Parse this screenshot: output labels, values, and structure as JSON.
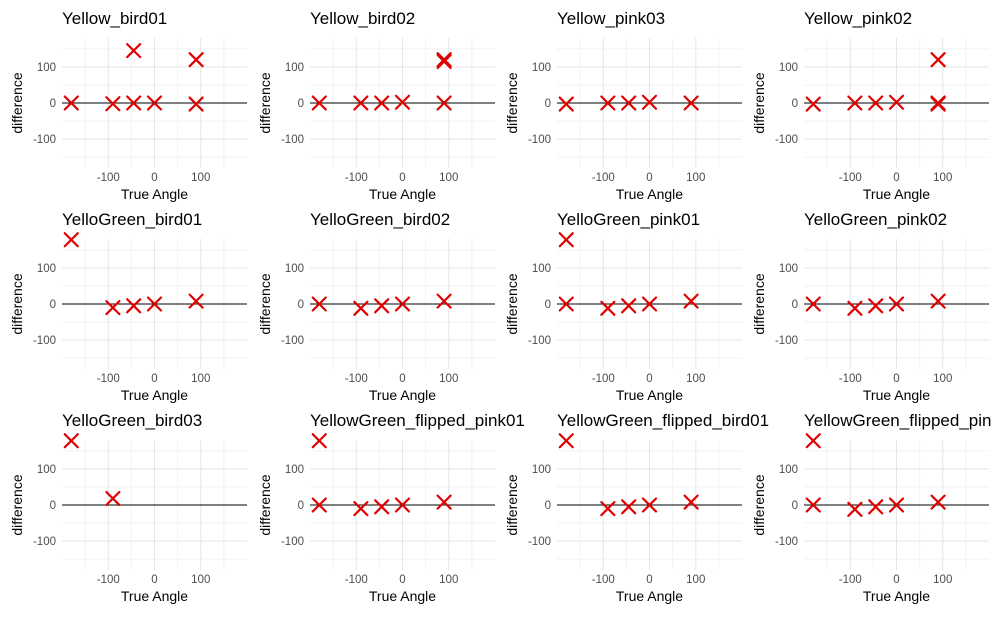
{
  "chart_data": [
    {
      "type": "scatter",
      "title": "Yellow_bird01",
      "xlabel": "True Angle",
      "ylabel": "difference",
      "x": [
        -180,
        -90,
        -45,
        0,
        90,
        -45,
        90
      ],
      "y": [
        0,
        -2,
        0,
        0,
        -3,
        145,
        120
      ],
      "xlim": [
        -200,
        200
      ],
      "ylim": [
        -180,
        180
      ],
      "xticks": [
        "-100",
        "0",
        "100"
      ],
      "yticks": [
        "-100",
        "0",
        "100"
      ]
    },
    {
      "type": "scatter",
      "title": "Yellow_bird02",
      "xlabel": "True Angle",
      "ylabel": "difference",
      "x": [
        -180,
        -90,
        -45,
        0,
        90,
        90,
        90
      ],
      "y": [
        0,
        0,
        0,
        2,
        0,
        120,
        115
      ],
      "xlim": [
        -200,
        200
      ],
      "ylim": [
        -180,
        180
      ],
      "xticks": [
        "-100",
        "0",
        "100"
      ],
      "yticks": [
        "-100",
        "0",
        "100"
      ]
    },
    {
      "type": "scatter",
      "title": "Yellow_pink03",
      "xlabel": "True Angle",
      "ylabel": "difference",
      "x": [
        -180,
        -90,
        -45,
        0,
        90
      ],
      "y": [
        -3,
        0,
        0,
        2,
        0
      ],
      "xlim": [
        -200,
        200
      ],
      "ylim": [
        -180,
        180
      ],
      "xticks": [
        "-100",
        "0",
        "100"
      ],
      "yticks": [
        "-100",
        "0",
        "100"
      ]
    },
    {
      "type": "scatter",
      "title": "Yellow_pink02",
      "xlabel": "True Angle",
      "ylabel": "difference",
      "x": [
        -180,
        -90,
        -45,
        0,
        90,
        90,
        90
      ],
      "y": [
        -3,
        0,
        0,
        2,
        -3,
        0,
        120
      ],
      "xlim": [
        -200,
        200
      ],
      "ylim": [
        -180,
        180
      ],
      "xticks": [
        "-100",
        "0",
        "100"
      ],
      "yticks": [
        "-100",
        "0",
        "100"
      ]
    },
    {
      "type": "scatter",
      "title": "YelloGreen_bird01",
      "xlabel": "True Angle",
      "ylabel": "difference",
      "x": [
        -180,
        -90,
        -45,
        0,
        90
      ],
      "y": [
        178,
        -10,
        -5,
        0,
        8
      ],
      "xlim": [
        -200,
        200
      ],
      "ylim": [
        -180,
        180
      ],
      "xticks": [
        "-100",
        "0",
        "100"
      ],
      "yticks": [
        "-100",
        "0",
        "100"
      ]
    },
    {
      "type": "scatter",
      "title": "YelloGreen_bird02",
      "xlabel": "True Angle",
      "ylabel": "difference",
      "x": [
        -180,
        -90,
        -45,
        0,
        90
      ],
      "y": [
        0,
        -12,
        -5,
        0,
        8
      ],
      "xlim": [
        -200,
        200
      ],
      "ylim": [
        -180,
        180
      ],
      "xticks": [
        "-100",
        "0",
        "100"
      ],
      "yticks": [
        "-100",
        "0",
        "100"
      ]
    },
    {
      "type": "scatter",
      "title": "YelloGreen_pink01",
      "xlabel": "True Angle",
      "ylabel": "difference",
      "x": [
        -180,
        -180,
        -90,
        -45,
        0,
        90
      ],
      "y": [
        178,
        0,
        -12,
        -5,
        0,
        8
      ],
      "xlim": [
        -200,
        200
      ],
      "ylim": [
        -180,
        180
      ],
      "xticks": [
        "-100",
        "0",
        "100"
      ],
      "yticks": [
        "-100",
        "0",
        "100"
      ]
    },
    {
      "type": "scatter",
      "title": "YelloGreen_pink02",
      "xlabel": "True Angle",
      "ylabel": "difference",
      "x": [
        -180,
        -90,
        -45,
        0,
        90
      ],
      "y": [
        0,
        -12,
        -5,
        0,
        8
      ],
      "xlim": [
        -200,
        200
      ],
      "ylim": [
        -180,
        180
      ],
      "xticks": [
        "-100",
        "0",
        "100"
      ],
      "yticks": [
        "-100",
        "0",
        "100"
      ]
    },
    {
      "type": "scatter",
      "title": "YelloGreen_bird03",
      "xlabel": "True Angle",
      "ylabel": "difference",
      "x": [
        -180,
        -90
      ],
      "y": [
        178,
        18
      ],
      "xlim": [
        -200,
        200
      ],
      "ylim": [
        -180,
        180
      ],
      "xticks": [
        "-100",
        "0",
        "100"
      ],
      "yticks": [
        "-100",
        "0",
        "100"
      ]
    },
    {
      "type": "scatter",
      "title": "YellowGreen_flipped_pink01",
      "xlabel": "True Angle",
      "ylabel": "difference",
      "x": [
        -180,
        -180,
        -90,
        -45,
        0,
        90
      ],
      "y": [
        178,
        0,
        -10,
        -5,
        0,
        8
      ],
      "xlim": [
        -200,
        200
      ],
      "ylim": [
        -180,
        180
      ],
      "xticks": [
        "-100",
        "0",
        "100"
      ],
      "yticks": [
        "-100",
        "0",
        "100"
      ]
    },
    {
      "type": "scatter",
      "title": "YellowGreen_flipped_bird01",
      "xlabel": "True Angle",
      "ylabel": "difference",
      "x": [
        -180,
        -90,
        -45,
        0,
        90
      ],
      "y": [
        178,
        -10,
        -5,
        0,
        8
      ],
      "xlim": [
        -200,
        200
      ],
      "ylim": [
        -180,
        180
      ],
      "xticks": [
        "-100",
        "0",
        "100"
      ],
      "yticks": [
        "-100",
        "0",
        "100"
      ]
    },
    {
      "type": "scatter",
      "title": "YellowGreen_flipped_pin",
      "xlabel": "True Angle",
      "ylabel": "difference",
      "x": [
        -180,
        -180,
        -90,
        -45,
        0,
        90
      ],
      "y": [
        178,
        0,
        -12,
        -5,
        0,
        8
      ],
      "xlim": [
        -200,
        200
      ],
      "ylim": [
        -180,
        180
      ],
      "xticks": [
        "-100",
        "0",
        "100"
      ],
      "yticks": [
        "-100",
        "0",
        "100"
      ]
    }
  ],
  "colors": {
    "marker": "#e00000",
    "grid_major": "#e5e5e5",
    "grid_minor": "#f2f2f2",
    "zero_line": "#000000"
  },
  "marker_shape": "x-mark-icon"
}
